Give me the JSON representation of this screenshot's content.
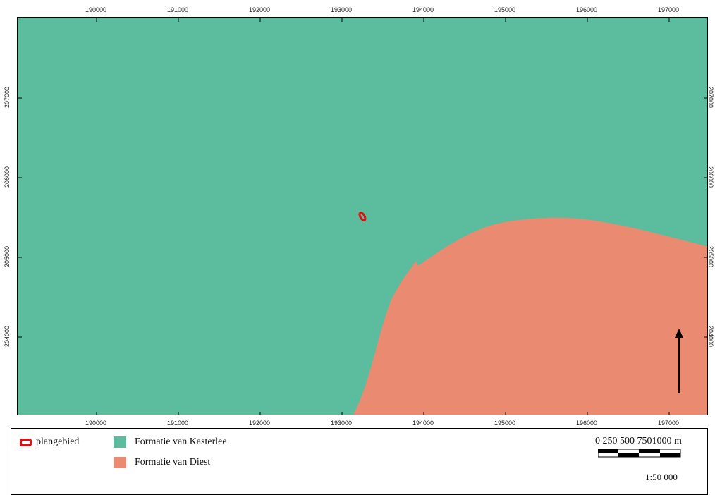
{
  "map": {
    "x_ticks": [
      "190000",
      "191000",
      "192000",
      "193000",
      "194000",
      "195000",
      "196000",
      "197000"
    ],
    "y_ticks": [
      "207000",
      "206000",
      "205000",
      "204000"
    ],
    "colors": {
      "kasterlee": "#5bbd9e",
      "diest": "#ea8a70",
      "boundary": "#e01010"
    },
    "north_arrow": "north-arrow-icon"
  },
  "legend": {
    "items": [
      {
        "label": "plangebied"
      },
      {
        "label": "Formatie van Kasterlee"
      },
      {
        "label": "Formatie van Diest"
      }
    ],
    "scalebar_labels": "0 250 500 7501000 m",
    "scale": "1:50 000"
  }
}
